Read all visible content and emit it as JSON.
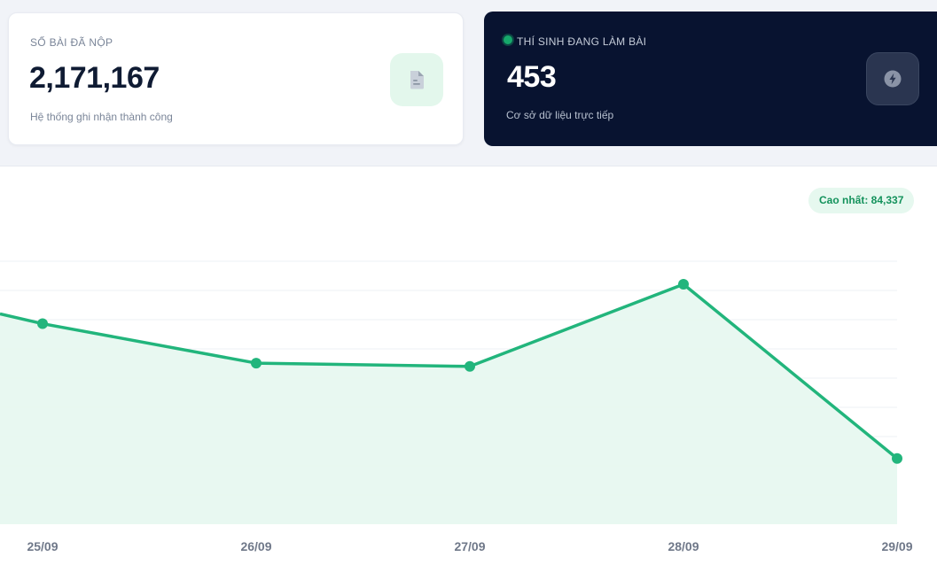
{
  "cards": {
    "submitted": {
      "label": "SỐ BÀI ĐÃ NỘP",
      "value": "2,171,167",
      "subtitle": "Hệ thống ghi nhận thành công",
      "icon": "document-icon"
    },
    "active": {
      "label": "THÍ SINH ĐANG LÀM BÀI",
      "value": "453",
      "subtitle": "Cơ sở dữ liệu trực tiếp",
      "icon": "lightning-icon"
    }
  },
  "chart": {
    "peak_badge": "Cao nhất: 84,337"
  },
  "chart_data": {
    "type": "area",
    "categories": [
      "25/09",
      "26/09",
      "27/09",
      "28/09",
      "29/09"
    ],
    "series": [
      {
        "values": [
          75500,
          69500,
          69000,
          81500,
          55000
        ]
      }
    ],
    "partial_left_value": 77000,
    "ylim": [
      45000,
      85000
    ],
    "grid": true,
    "colors": {
      "line": "#22b57c",
      "fill": "#e6f7ef"
    }
  },
  "colors": {
    "accent": "#22b57c",
    "dark_card": "#081330",
    "badge_bg": "#e6f8ef",
    "badge_text": "#14925c"
  }
}
